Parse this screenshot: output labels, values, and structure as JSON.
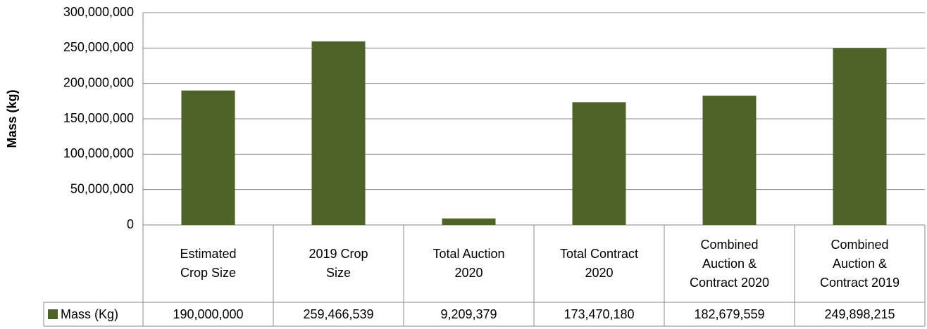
{
  "chart_data": {
    "type": "bar",
    "ylabel": "Mass (kg)",
    "categories": [
      "Estimated Crop Size",
      "2019 Crop Size",
      "Total Auction 2020",
      "Total Contract 2020",
      "Combined Auction & Contract 2020",
      "Combined Auction & Contract 2019"
    ],
    "series": [
      {
        "name": "Mass (Kg)",
        "color": "#4f6228",
        "values": [
          190000000,
          259466539,
          9209379,
          173470180,
          182679559,
          249898215
        ],
        "value_labels": [
          "190,000,000",
          "259,466,539",
          "9,209,379",
          "173,470,180",
          "182,679,559",
          "249,898,215"
        ]
      }
    ],
    "ylim": [
      0,
      300000000
    ],
    "yticks": [
      0,
      {
        "value": 50000000,
        "label": "50,000,000"
      },
      {
        "value": 100000000,
        "label": "100,000,000"
      },
      {
        "value": 150000000,
        "label": "150,000,000"
      },
      {
        "value": 200000000,
        "label": "200,000,000"
      },
      {
        "value": 250000000,
        "label": "250,000,000"
      },
      {
        "value": 300000000,
        "label": "300,000,000"
      }
    ],
    "grid": true
  }
}
